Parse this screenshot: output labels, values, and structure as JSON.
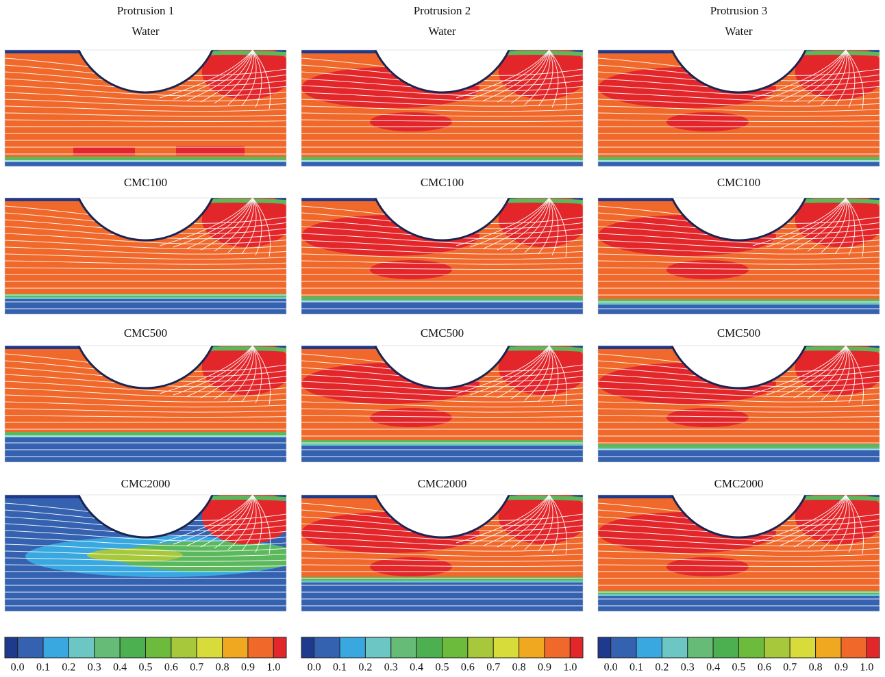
{
  "columns": [
    {
      "title": "Protrusion 1",
      "rows": [
        "Water",
        "CMC100",
        "CMC500",
        "CMC2000"
      ]
    },
    {
      "title": "Protrusion 2",
      "rows": [
        "Water",
        "CMC100",
        "CMC500",
        "CMC2000"
      ]
    },
    {
      "title": "Protrusion 3",
      "rows": [
        "Water",
        "CMC100",
        "CMC500",
        "CMC2000"
      ]
    }
  ],
  "colorbars": [
    {
      "labels": [
        "0.0",
        "0.1",
        "0.2",
        "0.3",
        "0.4",
        "0.5",
        "0.6",
        "0.7",
        "0.8",
        "0.9",
        "1.0"
      ]
    },
    {
      "labels": [
        "0.0",
        "0.1",
        "0.2",
        "0.3",
        "0.4",
        "0.5",
        "0.6",
        "0.7",
        "0.8",
        "0.9",
        "1.0"
      ]
    },
    {
      "labels": [
        "0.0",
        "0.1",
        "0.2",
        "0.3",
        "0.4",
        "0.5",
        "0.6",
        "0.7",
        "0.8",
        "0.9",
        "1.0"
      ]
    }
  ]
}
